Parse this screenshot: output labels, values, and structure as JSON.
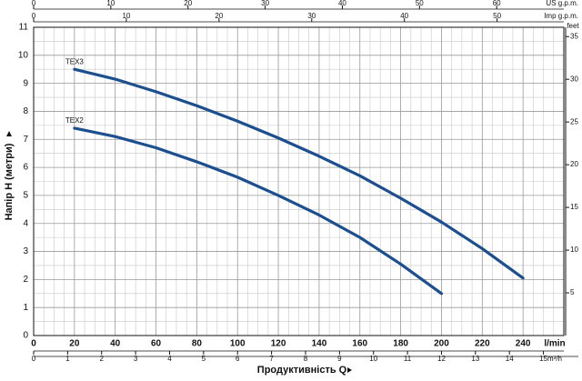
{
  "chart_data": {
    "type": "line",
    "ylabel": "Напір H (метри)",
    "xlabel": "Продуктивність Q",
    "xunit": "l/min",
    "xlim": [
      0,
      260
    ],
    "xticks": [
      0,
      20,
      40,
      60,
      80,
      100,
      120,
      140,
      160,
      180,
      200,
      220,
      240
    ],
    "ylim": [
      0,
      11
    ],
    "yticks": [
      0,
      1,
      2,
      3,
      4,
      5,
      6,
      7,
      8,
      9,
      10,
      11
    ],
    "y2label": "feet",
    "y2lim": [
      0,
      36.09
    ],
    "y2ticks": [
      5,
      10,
      15,
      20,
      25,
      30,
      35
    ],
    "secondary_x": [
      {
        "label": "m³/h",
        "lim": [
          0,
          15.6
        ],
        "ticks": [
          0,
          1,
          2,
          3,
          4,
          5,
          6,
          7,
          8,
          9,
          10,
          11,
          12,
          13,
          14,
          15
        ]
      },
      {
        "label": "US g.p.m.",
        "lim": [
          0,
          68.7
        ],
        "ticks": [
          0,
          10,
          20,
          30,
          40,
          50,
          60
        ]
      },
      {
        "label": "Imp g.p.m.",
        "lim": [
          0,
          57.2
        ],
        "ticks": [
          0,
          10,
          20,
          30,
          40,
          50
        ]
      }
    ],
    "grid": true,
    "series": [
      {
        "name": "TEX3",
        "color": "#1c4f8f",
        "x": [
          20,
          40,
          60,
          80,
          100,
          120,
          140,
          160,
          180,
          200,
          220,
          240
        ],
        "values": [
          9.5,
          9.15,
          8.7,
          8.2,
          7.65,
          7.05,
          6.4,
          5.7,
          4.9,
          4.05,
          3.1,
          2.05
        ]
      },
      {
        "name": "TEX2",
        "color": "#1c4f8f",
        "x": [
          20,
          40,
          60,
          80,
          100,
          120,
          140,
          160,
          180,
          200
        ],
        "values": [
          7.4,
          7.1,
          6.7,
          6.2,
          5.65,
          5.0,
          4.3,
          3.5,
          2.55,
          1.5
        ]
      }
    ]
  }
}
